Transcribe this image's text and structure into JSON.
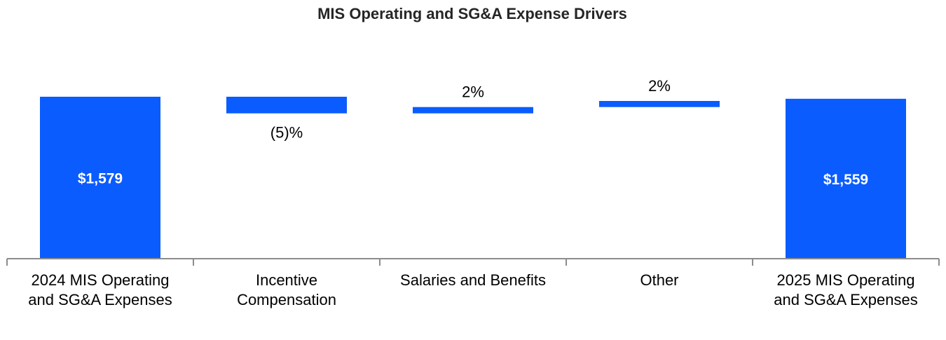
{
  "chart_data": {
    "type": "bar",
    "subtype": "waterfall",
    "title": "MIS Operating and SG&A Expense Drivers",
    "xlabel": "",
    "ylabel": "",
    "categories": [
      [
        "2024 MIS Operating",
        "and SG&A Expenses"
      ],
      [
        "Incentive",
        "Compensation"
      ],
      [
        "Salaries and Benefits"
      ],
      [
        "Other"
      ],
      [
        "2025 MIS Operating",
        "and SG&A Expenses"
      ]
    ],
    "bars": [
      {
        "kind": "total",
        "start": 0,
        "end": 1579,
        "label": "$1,579"
      },
      {
        "kind": "delta",
        "start": 1579,
        "end": 1500,
        "label": "(5)%"
      },
      {
        "kind": "delta",
        "start": 1500,
        "end": 1530,
        "label": "2%"
      },
      {
        "kind": "delta",
        "start": 1530,
        "end": 1559,
        "label": "2%"
      },
      {
        "kind": "total",
        "start": 0,
        "end": 1559,
        "label": "$1,559"
      }
    ],
    "ylim": [
      0,
      1579
    ],
    "grid": false,
    "legend": "none",
    "colors": {
      "bar": "#0A5CFF",
      "axis": "#8C8C8C",
      "text": "#000000",
      "title": "#262626",
      "total_label": "#FFFFFF"
    }
  }
}
